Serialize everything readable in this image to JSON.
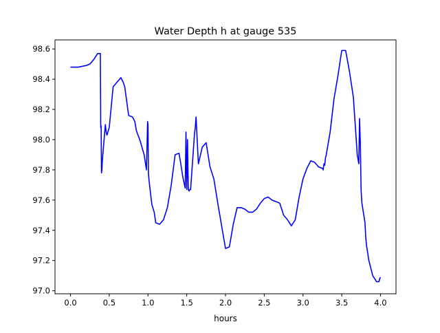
{
  "chart_data": {
    "type": "line",
    "title": "Water Depth h at gauge 535",
    "xlabel": "hours",
    "ylabel": "",
    "xlim": [
      -0.2,
      4.2
    ],
    "ylim": [
      96.98,
      98.66
    ],
    "xticks": [
      0.0,
      0.5,
      1.0,
      1.5,
      2.0,
      2.5,
      3.0,
      3.5,
      4.0
    ],
    "xtick_labels": [
      "0.0",
      "0.5",
      "1.0",
      "1.5",
      "2.0",
      "2.5",
      "3.0",
      "3.5",
      "4.0"
    ],
    "yticks": [
      97.0,
      97.2,
      97.4,
      97.6,
      97.8,
      98.0,
      98.2,
      98.4,
      98.6
    ],
    "ytick_labels": [
      "97.0",
      "97.2",
      "97.4",
      "97.6",
      "97.8",
      "98.0",
      "98.2",
      "98.4",
      "98.6"
    ],
    "grid": false,
    "legend": false,
    "series": [
      {
        "color": "#0000ff",
        "x": [
          0.0,
          0.1,
          0.2,
          0.25,
          0.3,
          0.35,
          0.385,
          0.39,
          0.395,
          0.4,
          0.405,
          0.41,
          0.42,
          0.45,
          0.46,
          0.47,
          0.5,
          0.55,
          0.6,
          0.65,
          0.68,
          0.7,
          0.75,
          0.8,
          0.83,
          0.85,
          0.9,
          0.95,
          0.98,
          0.995,
          1.0,
          1.005,
          1.01,
          1.02,
          1.05,
          1.08,
          1.1,
          1.15,
          1.2,
          1.25,
          1.3,
          1.35,
          1.4,
          1.42,
          1.45,
          1.48,
          1.49,
          1.5,
          1.51,
          1.52,
          1.53,
          1.54,
          1.55,
          1.6,
          1.61,
          1.62,
          1.65,
          1.655,
          1.7,
          1.75,
          1.8,
          1.85,
          1.9,
          2.0,
          2.05,
          2.1,
          2.15,
          2.2,
          2.25,
          2.3,
          2.35,
          2.4,
          2.45,
          2.5,
          2.55,
          2.6,
          2.65,
          2.7,
          2.75,
          2.8,
          2.85,
          2.9,
          2.95,
          3.0,
          3.05,
          3.1,
          3.15,
          3.2,
          3.25,
          3.26,
          3.27,
          3.28,
          3.29,
          3.3,
          3.35,
          3.4,
          3.45,
          3.5,
          3.55,
          3.6,
          3.65,
          3.7,
          3.72,
          3.73,
          3.74,
          3.75,
          3.76,
          3.8,
          3.81,
          3.82,
          3.85,
          3.9,
          3.95,
          3.98,
          3.99,
          4.0
        ],
        "y": [
          98.48,
          98.48,
          98.49,
          98.5,
          98.53,
          98.57,
          98.57,
          98.08,
          98.09,
          97.78,
          97.8,
          97.85,
          97.92,
          98.1,
          98.05,
          98.03,
          98.08,
          98.35,
          98.38,
          98.41,
          98.38,
          98.35,
          98.16,
          98.15,
          98.12,
          98.06,
          97.99,
          97.9,
          97.8,
          98.12,
          98.1,
          97.78,
          97.75,
          97.7,
          97.57,
          97.52,
          97.45,
          97.44,
          97.47,
          97.55,
          97.7,
          97.9,
          97.91,
          97.85,
          97.75,
          97.68,
          98.05,
          97.67,
          98.0,
          97.67,
          97.66,
          97.67,
          97.67,
          98.04,
          98.08,
          98.15,
          97.84,
          97.85,
          97.95,
          97.98,
          97.82,
          97.74,
          97.58,
          97.28,
          97.29,
          97.44,
          97.55,
          97.55,
          97.54,
          97.52,
          97.52,
          97.54,
          97.58,
          97.61,
          97.62,
          97.6,
          97.59,
          97.58,
          97.5,
          97.47,
          97.43,
          97.47,
          97.62,
          97.74,
          97.81,
          97.86,
          97.85,
          97.82,
          97.81,
          97.8,
          97.84,
          97.83,
          97.88,
          97.9,
          98.05,
          98.27,
          98.42,
          98.59,
          98.59,
          98.45,
          98.28,
          97.9,
          97.84,
          98.14,
          97.97,
          97.66,
          97.58,
          97.45,
          97.35,
          97.3,
          97.2,
          97.1,
          97.06,
          97.06,
          97.08,
          97.09
        ]
      }
    ]
  }
}
